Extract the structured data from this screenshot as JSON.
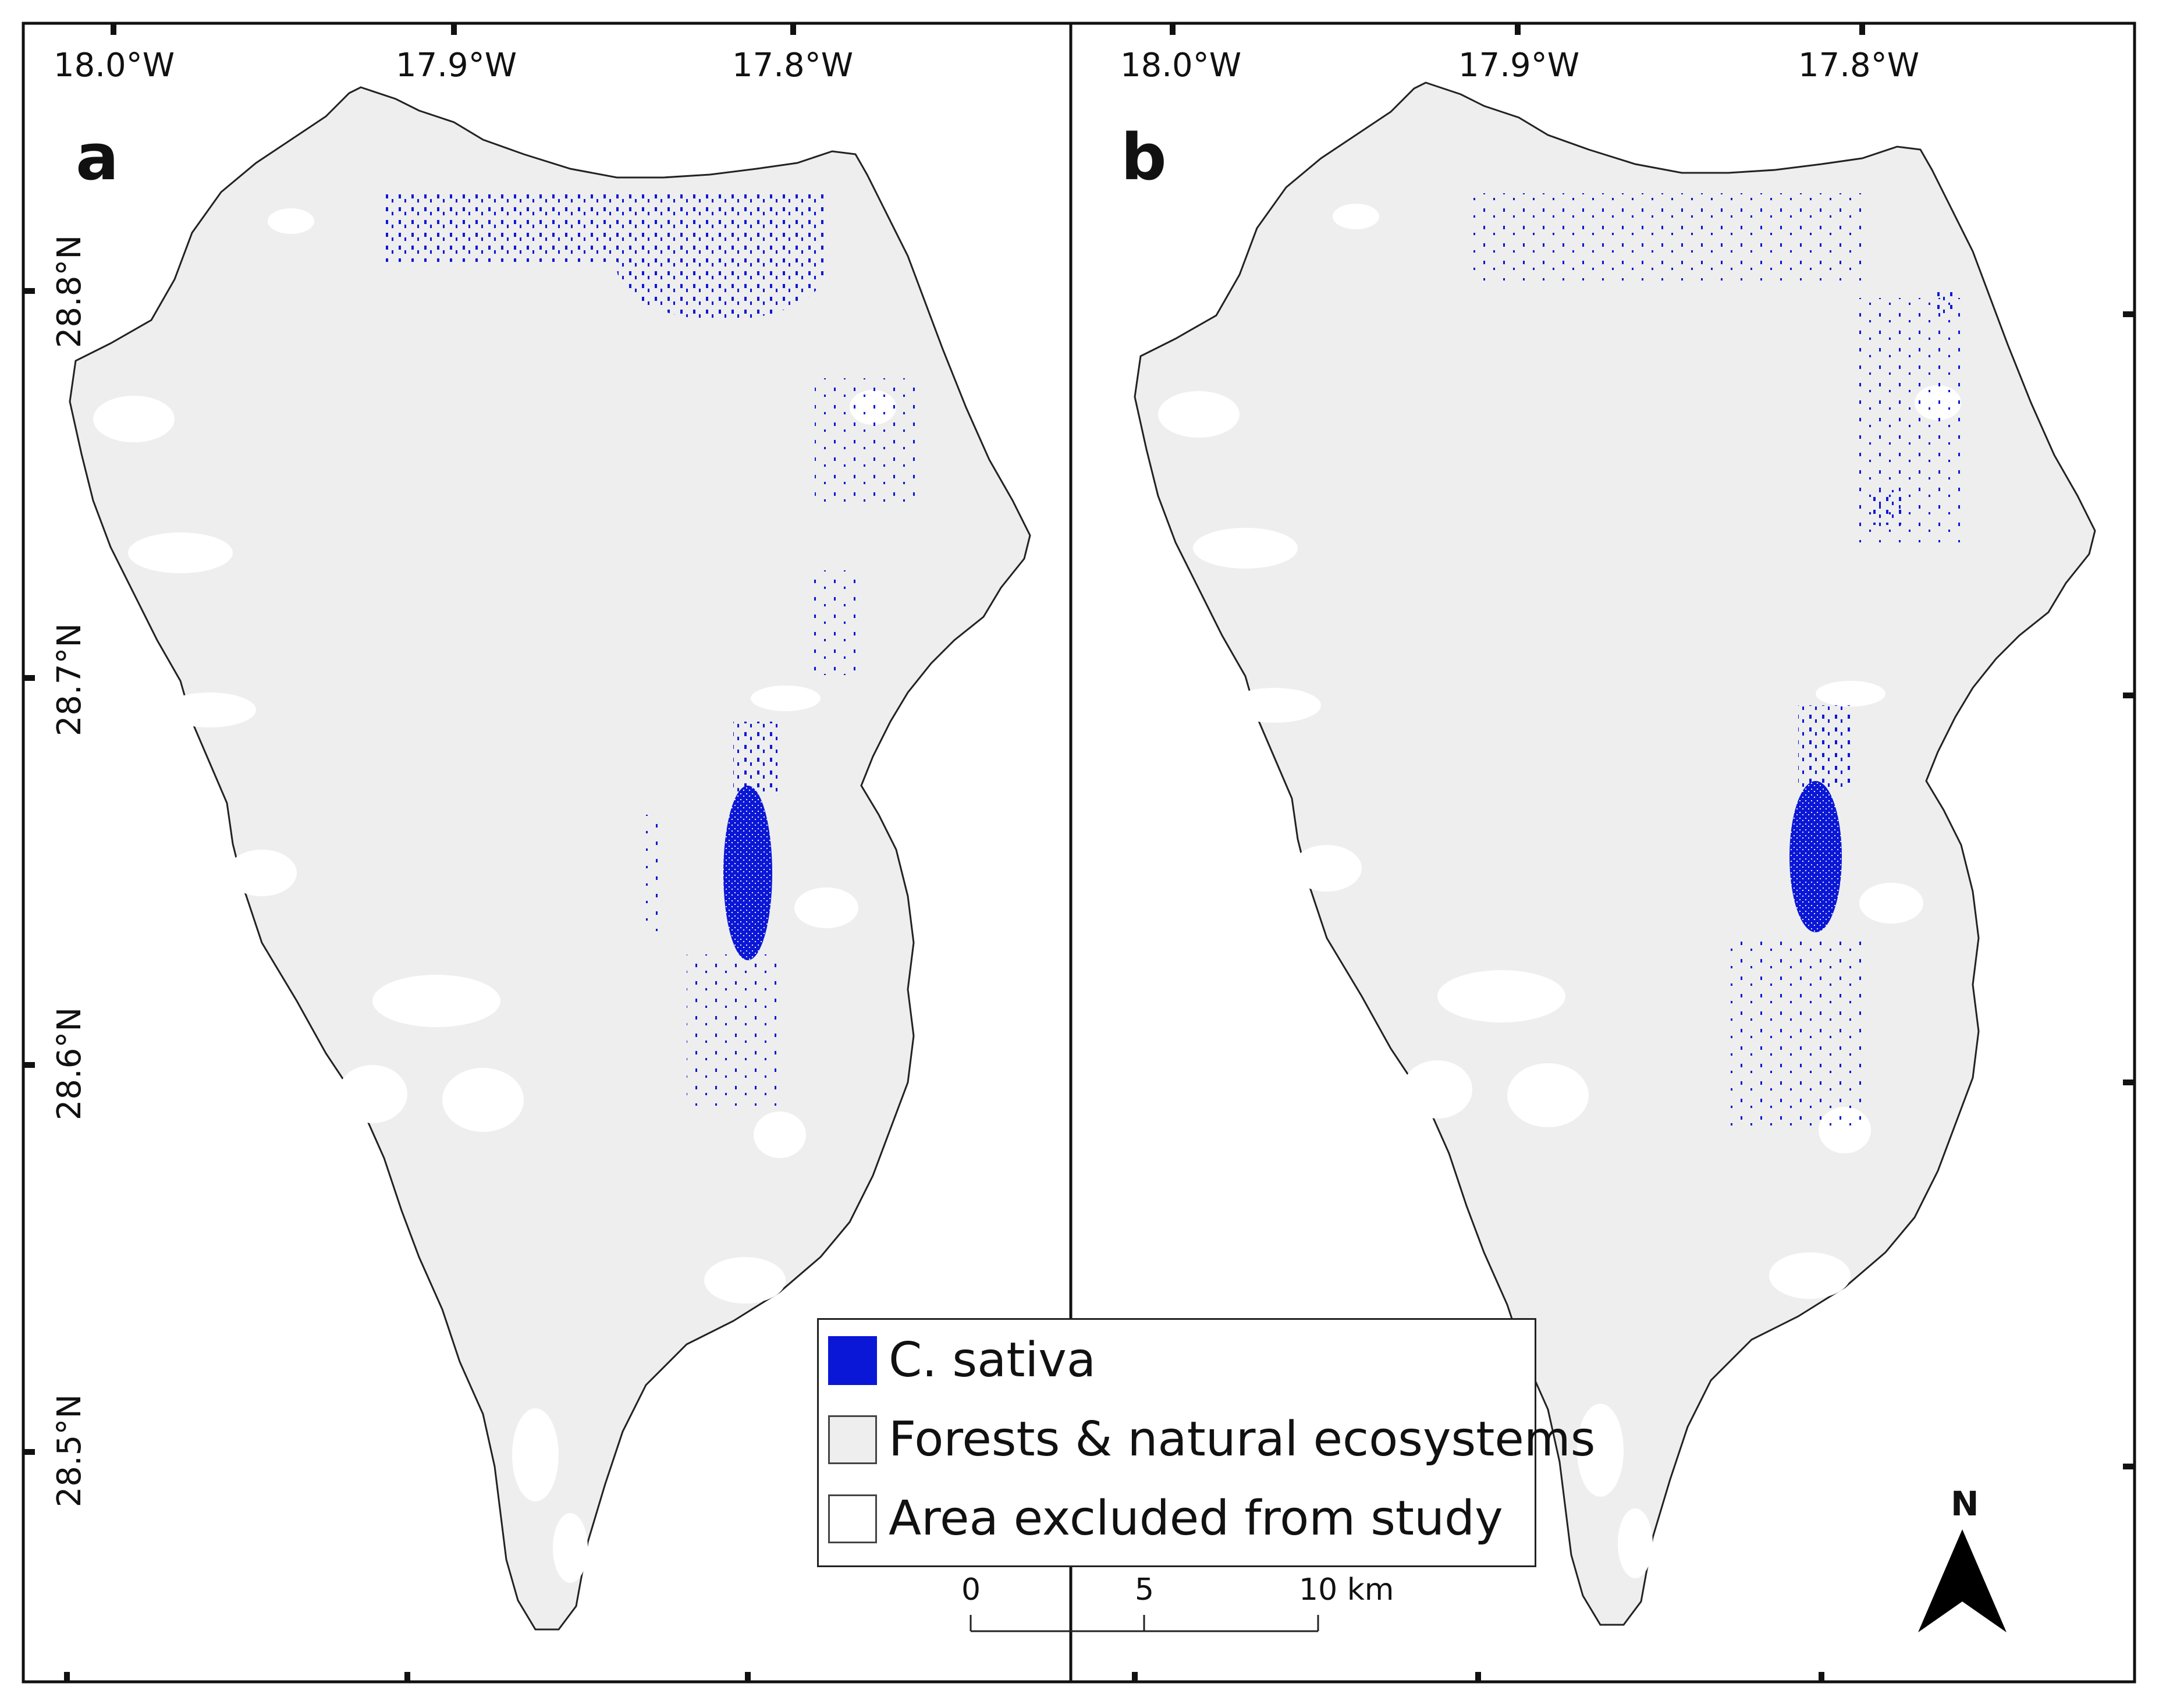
{
  "panels": [
    {
      "letter": "a",
      "lon_labels": [
        "18.0°W",
        "17.9°W",
        "17.8°W"
      ],
      "lat_labels": [
        "28.8°N",
        "28.7°N",
        "28.6°N",
        "28.5°N"
      ]
    },
    {
      "letter": "b",
      "lon_labels": [
        "18.0°W",
        "17.9°W",
        "17.8°W"
      ],
      "lat_labels": []
    }
  ],
  "legend": {
    "items": [
      {
        "label": "C. sativa",
        "color": "#0b17d6"
      },
      {
        "label": "Forests & natural ecosystems",
        "color": "#eeeeee"
      },
      {
        "label": "Area excluded from study",
        "color": "#ffffff"
      }
    ]
  },
  "scale_bar": {
    "ticks": [
      "0",
      "5",
      "10 km"
    ]
  },
  "north_arrow": {
    "label": "N"
  },
  "colors": {
    "island": "#eeeeee",
    "species": "#0b17d6",
    "frame": "#111111"
  }
}
